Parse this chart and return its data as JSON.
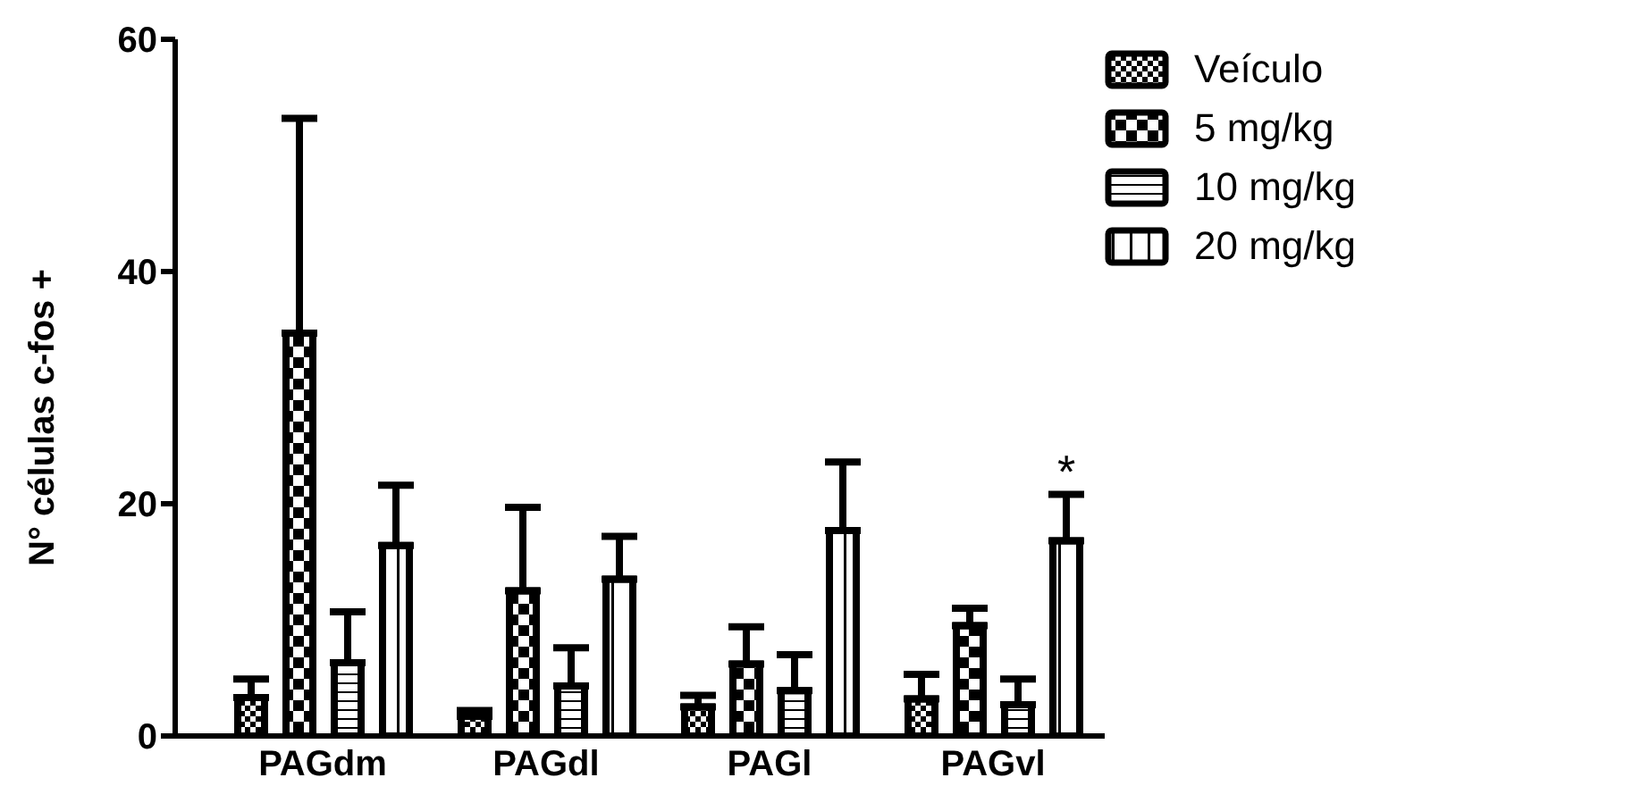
{
  "chart_data": {
    "type": "bar",
    "ylabel": "N° células c-fos +",
    "categories": [
      "PAGdm",
      "PAGdl",
      "PAGl",
      "PAGvl"
    ],
    "ylim": [
      0,
      60
    ],
    "yticks": [
      0,
      20,
      40,
      60
    ],
    "grid": false,
    "legend": "top right",
    "series": [
      {
        "name": "Veículo",
        "color": "#000000",
        "values": [
          3.3,
          1.7,
          2.5,
          3.2
        ],
        "errors": [
          [
            3.3,
            4.9
          ],
          [
            1.7,
            2.2
          ],
          [
            2.5,
            3.5
          ],
          [
            3.2,
            5.3
          ]
        ]
      },
      {
        "name": "5 mg/kg",
        "color": "#000000",
        "values": [
          34.7,
          12.5,
          6.2,
          9.5
        ],
        "errors": [
          [
            34.7,
            53.2
          ],
          [
            12.5,
            19.7
          ],
          [
            6.2,
            9.4
          ],
          [
            9.5,
            11.0
          ]
        ]
      },
      {
        "name": "10 mg/kg",
        "color": "#000000",
        "values": [
          6.3,
          4.3,
          3.9,
          2.7
        ],
        "errors": [
          [
            6.3,
            10.7
          ],
          [
            4.3,
            7.6
          ],
          [
            3.9,
            7.0
          ],
          [
            2.7,
            4.9
          ]
        ]
      },
      {
        "name": "20 mg/kg",
        "color": "#000000",
        "values": [
          16.4,
          13.5,
          17.7,
          16.8
        ],
        "errors": [
          [
            16.4,
            21.6
          ],
          [
            13.5,
            17.2
          ],
          [
            17.7,
            23.6
          ],
          [
            16.8,
            20.8
          ]
        ]
      }
    ],
    "annotations": [
      "*"
    ]
  }
}
